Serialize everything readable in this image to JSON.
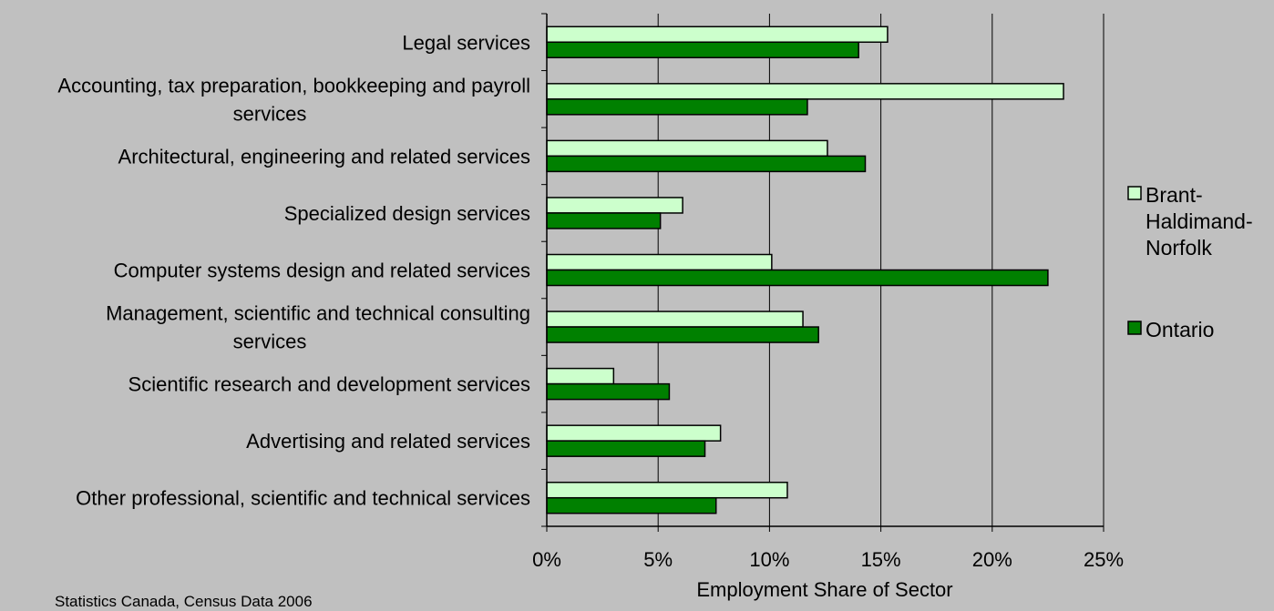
{
  "chart_data": {
    "type": "bar",
    "orientation": "horizontal",
    "categories": [
      "Legal services",
      "Accounting, tax preparation, bookkeeping and payroll services",
      "Architectural, engineering and related services",
      "Specialized design services",
      "Computer systems design and related services",
      "Management, scientific and technical consulting services",
      "Scientific research and development services",
      "Advertising and related services",
      "Other professional, scientific and technical services"
    ],
    "category_label_lines": [
      [
        "Legal services"
      ],
      [
        "Accounting, tax preparation, bookkeeping and payroll",
        "services"
      ],
      [
        "Architectural, engineering and related services"
      ],
      [
        "Specialized design services"
      ],
      [
        "Computer systems design and related services"
      ],
      [
        "Management, scientific and technical consulting",
        "services"
      ],
      [
        "Scientific research and development services"
      ],
      [
        "Advertising and related services"
      ],
      [
        "Other professional, scientific and technical services"
      ]
    ],
    "series": [
      {
        "name": "Brant-Haldimand-Norfolk",
        "legend_lines": [
          "Brant-",
          "Haldimand-",
          "Norfolk"
        ],
        "color": "#ccffcc",
        "values": [
          15.3,
          23.2,
          12.6,
          6.1,
          10.1,
          11.5,
          3.0,
          7.8,
          10.8
        ]
      },
      {
        "name": "Ontario",
        "legend_lines": [
          "Ontario"
        ],
        "color": "#008000",
        "values": [
          14.0,
          11.7,
          14.3,
          5.1,
          22.5,
          12.2,
          5.5,
          7.1,
          7.6
        ]
      }
    ],
    "xlim": [
      0,
      25
    ],
    "x_ticks": [
      "0%",
      "5%",
      "10%",
      "15%",
      "20%",
      "25%"
    ],
    "x_tick_values": [
      0,
      5,
      10,
      15,
      20,
      25
    ],
    "xlabel": "Employment Share of Sector",
    "grid": "vertical",
    "legend_position": "right"
  },
  "source_note": "Statistics Canada, Census Data 2006"
}
